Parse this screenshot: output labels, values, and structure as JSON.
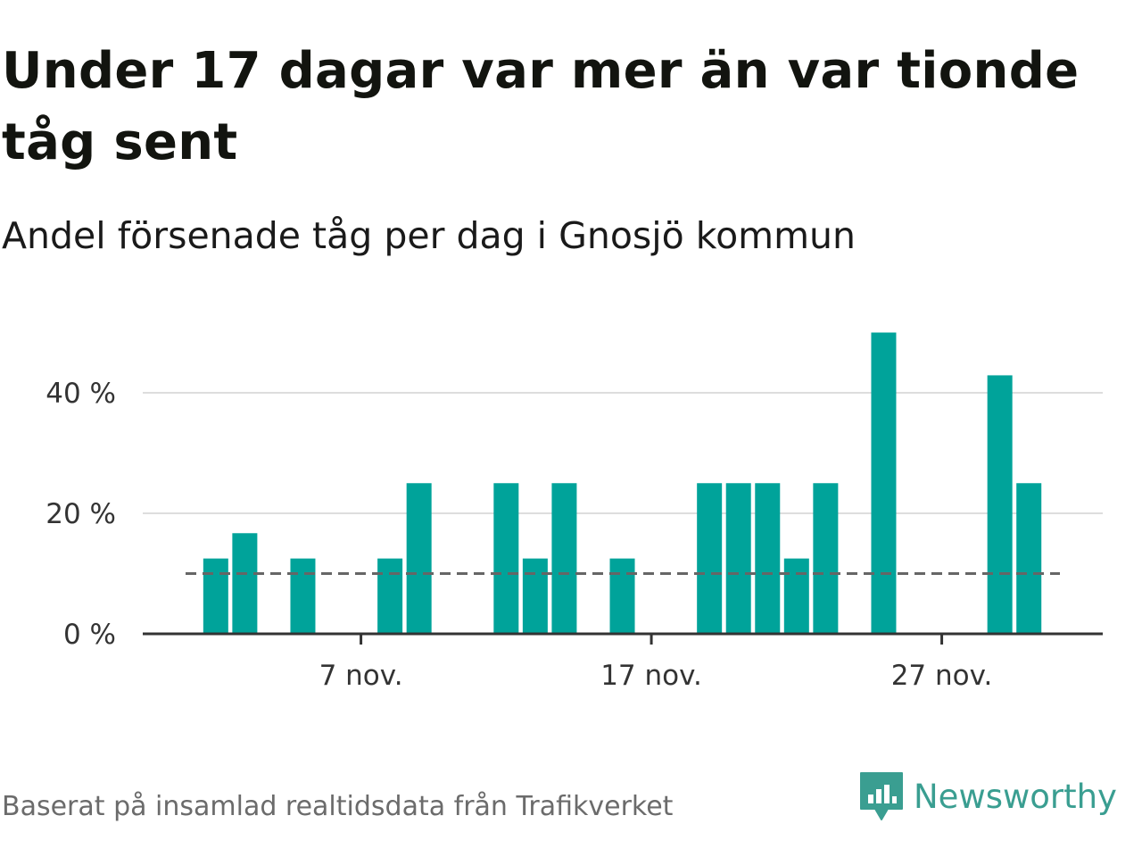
{
  "title": "Under 17 dagar var mer än var tionde tåg sent",
  "subtitle": "Andel försenade tåg per dag i Gnosjö kommun",
  "source": "Baserat på insamlad realtidsdata från Trafikverket",
  "brand": {
    "name": "Newsworthy",
    "icon": "newsworthy-logo-icon"
  },
  "colors": {
    "bar": "#00a39a",
    "reference_line": "#666666",
    "grid": "#dddddd",
    "axis": "#333333",
    "brand": "#3a9e91"
  },
  "chart_data": {
    "type": "bar",
    "title": "Under 17 dagar var mer än var tionde tåg sent",
    "subtitle": "Andel försenade tåg per dag i Gnosjö kommun",
    "xlabel": "",
    "ylabel": "",
    "x": [
      "2023-11-01",
      "2023-11-02",
      "2023-11-03",
      "2023-11-04",
      "2023-11-05",
      "2023-11-06",
      "2023-11-07",
      "2023-11-08",
      "2023-11-09",
      "2023-11-10",
      "2023-11-11",
      "2023-11-12",
      "2023-11-13",
      "2023-11-14",
      "2023-11-15",
      "2023-11-16",
      "2023-11-17",
      "2023-11-18",
      "2023-11-19",
      "2023-11-20",
      "2023-11-21",
      "2023-11-22",
      "2023-11-23",
      "2023-11-24",
      "2023-11-25",
      "2023-11-26",
      "2023-11-27",
      "2023-11-28",
      "2023-11-29",
      "2023-11-30"
    ],
    "values": [
      0,
      12.5,
      16.7,
      0,
      12.5,
      0,
      0,
      12.5,
      25,
      0,
      0,
      25,
      12.5,
      25,
      0,
      12.5,
      0,
      0,
      25,
      25,
      25,
      12.5,
      25,
      0,
      50,
      0,
      0,
      0,
      42.9,
      25
    ],
    "reference_line": {
      "value": 10,
      "style": "dashed"
    },
    "y_ticks": [
      {
        "value": 0,
        "label": "0 %"
      },
      {
        "value": 20,
        "label": "20 %"
      },
      {
        "value": 40,
        "label": "40 %"
      }
    ],
    "x_ticks": [
      {
        "value": "2023-11-07",
        "label": "7 nov."
      },
      {
        "value": "2023-11-17",
        "label": "17 nov."
      },
      {
        "value": "2023-11-27",
        "label": "27 nov."
      }
    ],
    "ylim": [
      0,
      54
    ],
    "grid": true,
    "legend": "none"
  }
}
